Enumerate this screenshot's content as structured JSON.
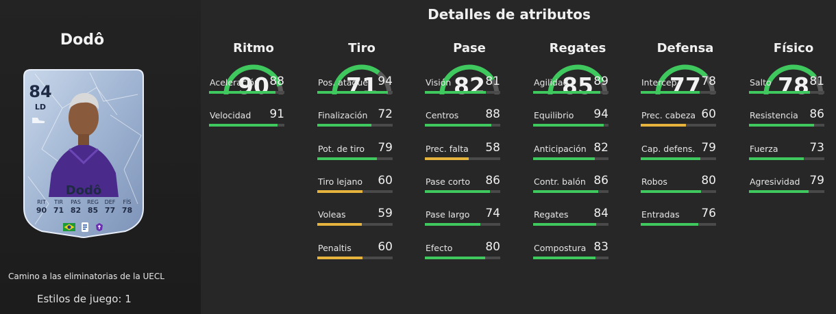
{
  "player": {
    "name": "Dodô",
    "card": {
      "rating": "84",
      "position": "LD",
      "name": "Dodô",
      "stats": [
        {
          "label": "RIT",
          "value": "90"
        },
        {
          "label": "TIR",
          "value": "71"
        },
        {
          "label": "PAS",
          "value": "82"
        },
        {
          "label": "REG",
          "value": "85"
        },
        {
          "label": "DEF",
          "value": "77"
        },
        {
          "label": "FÍS",
          "value": "78"
        }
      ]
    },
    "promo": "Camino a las eliminatorias de la UECL",
    "playstyles": "Estilos de juego: 1"
  },
  "colors": {
    "high": "#3ec85d",
    "mid": "#e6b43c",
    "track": "#4a4a4a",
    "gauge_track": "#5a5a5a"
  },
  "details": {
    "title": "Detalles de atributos",
    "categories": [
      {
        "name": "Ritmo",
        "value": 90,
        "attrs": [
          {
            "label": "Aceleración",
            "value": 88
          },
          {
            "label": "Velocidad",
            "value": 91
          }
        ]
      },
      {
        "name": "Tiro",
        "value": 71,
        "attrs": [
          {
            "label": "Pos. ataque",
            "value": 94
          },
          {
            "label": "Finalización",
            "value": 72
          },
          {
            "label": "Pot. de tiro",
            "value": 79
          },
          {
            "label": "Tiro lejano",
            "value": 60
          },
          {
            "label": "Voleas",
            "value": 59
          },
          {
            "label": "Penaltis",
            "value": 60
          }
        ]
      },
      {
        "name": "Pase",
        "value": 82,
        "attrs": [
          {
            "label": "Visión",
            "value": 81
          },
          {
            "label": "Centros",
            "value": 88
          },
          {
            "label": "Prec. falta",
            "value": 58
          },
          {
            "label": "Pase corto",
            "value": 86
          },
          {
            "label": "Pase largo",
            "value": 74
          },
          {
            "label": "Efecto",
            "value": 80
          }
        ]
      },
      {
        "name": "Regates",
        "value": 85,
        "attrs": [
          {
            "label": "Agilidad",
            "value": 89
          },
          {
            "label": "Equilibrio",
            "value": 94
          },
          {
            "label": "Anticipación",
            "value": 82
          },
          {
            "label": "Contr. balón",
            "value": 86
          },
          {
            "label": "Regates",
            "value": 84
          },
          {
            "label": "Compostura",
            "value": 83
          }
        ]
      },
      {
        "name": "Defensa",
        "value": 77,
        "attrs": [
          {
            "label": "Intercep.",
            "value": 78
          },
          {
            "label": "Prec. cabeza",
            "value": 60
          },
          {
            "label": "Cap. defens.",
            "value": 79
          },
          {
            "label": "Robos",
            "value": 80
          },
          {
            "label": "Entradas",
            "value": 76
          }
        ]
      },
      {
        "name": "Físico",
        "value": 78,
        "attrs": [
          {
            "label": "Salto",
            "value": 81
          },
          {
            "label": "Resistencia",
            "value": 86
          },
          {
            "label": "Fuerza",
            "value": 73
          },
          {
            "label": "Agresividad",
            "value": 79
          }
        ]
      }
    ]
  }
}
